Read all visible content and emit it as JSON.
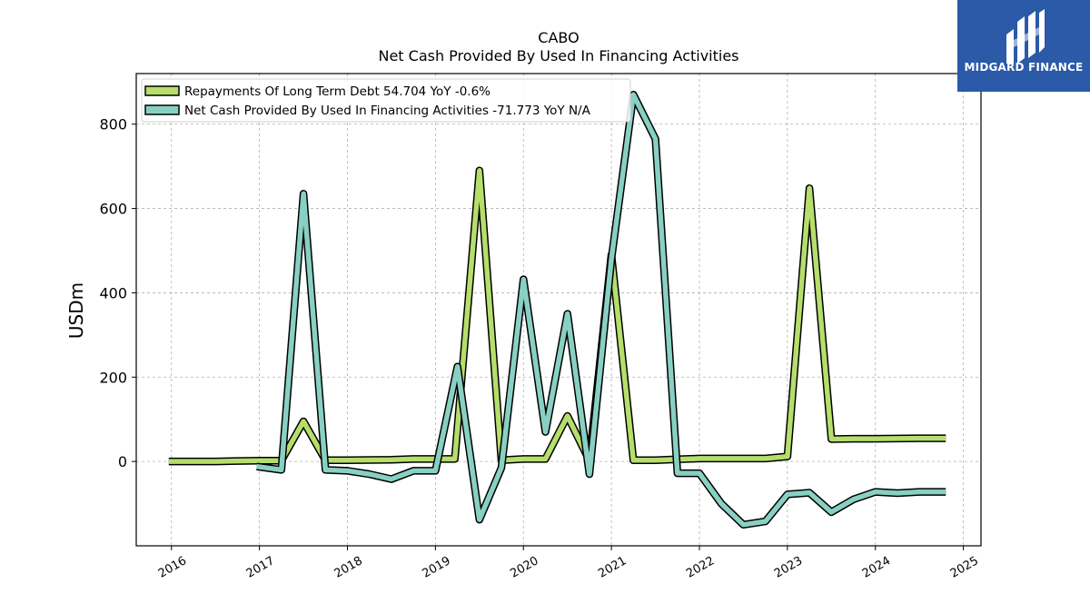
{
  "brand": {
    "name": "MIDGARD FINANCE",
    "icon": "midgard-logo-icon",
    "bg_color": "#2a5aa8"
  },
  "chart_data": {
    "type": "line",
    "title": "CABO",
    "subtitle": "Net Cash Provided By Used In Financing Activities",
    "xlabel": "",
    "ylabel": "USDm",
    "xlim": [
      2015.6,
      2025.2
    ],
    "ylim": [
      -200,
      920
    ],
    "x_ticks": [
      2016,
      2017,
      2018,
      2019,
      2020,
      2021,
      2022,
      2023,
      2024,
      2025
    ],
    "y_ticks": [
      0,
      200,
      400,
      600,
      800
    ],
    "grid": true,
    "legend_position": "top-left",
    "series": [
      {
        "name": "Repayments Of Long Term Debt  54.704 YoY -0.6%",
        "color": "#b5de6b",
        "points": [
          [
            2015.97,
            0
          ],
          [
            2016.5,
            0
          ],
          [
            2017.0,
            2
          ],
          [
            2017.25,
            2
          ],
          [
            2017.5,
            95
          ],
          [
            2017.75,
            3
          ],
          [
            2018.0,
            3
          ],
          [
            2018.5,
            4
          ],
          [
            2018.75,
            6
          ],
          [
            2019.0,
            6
          ],
          [
            2019.22,
            6
          ],
          [
            2019.5,
            690
          ],
          [
            2019.75,
            3
          ],
          [
            2020.0,
            6
          ],
          [
            2020.25,
            6
          ],
          [
            2020.5,
            108
          ],
          [
            2020.75,
            2
          ],
          [
            2021.0,
            490
          ],
          [
            2021.25,
            3
          ],
          [
            2021.5,
            3
          ],
          [
            2021.75,
            5
          ],
          [
            2022.0,
            7
          ],
          [
            2022.25,
            7
          ],
          [
            2022.5,
            7
          ],
          [
            2022.75,
            7
          ],
          [
            2023.0,
            12
          ],
          [
            2023.25,
            648
          ],
          [
            2023.5,
            53
          ],
          [
            2023.75,
            54
          ],
          [
            2024.0,
            54
          ],
          [
            2024.5,
            55
          ],
          [
            2024.8,
            55
          ]
        ]
      },
      {
        "name": "Net Cash Provided By Used In Financing Activities  -71.773 YoY N/A",
        "color": "#88d0c3",
        "points": [
          [
            2016.97,
            -12
          ],
          [
            2017.25,
            -20
          ],
          [
            2017.5,
            635
          ],
          [
            2017.75,
            -20
          ],
          [
            2018.0,
            -22
          ],
          [
            2018.25,
            -30
          ],
          [
            2018.5,
            -42
          ],
          [
            2018.75,
            -22
          ],
          [
            2019.0,
            -22
          ],
          [
            2019.25,
            225
          ],
          [
            2019.5,
            -138
          ],
          [
            2019.75,
            -15
          ],
          [
            2020.0,
            432
          ],
          [
            2020.25,
            70
          ],
          [
            2020.5,
            350
          ],
          [
            2020.75,
            -30
          ],
          [
            2021.0,
            480
          ],
          [
            2021.25,
            870
          ],
          [
            2021.5,
            765
          ],
          [
            2021.75,
            -28
          ],
          [
            2022.0,
            -28
          ],
          [
            2022.25,
            -100
          ],
          [
            2022.5,
            -150
          ],
          [
            2022.75,
            -142
          ],
          [
            2023.0,
            -78
          ],
          [
            2023.25,
            -74
          ],
          [
            2023.5,
            -120
          ],
          [
            2023.75,
            -90
          ],
          [
            2024.0,
            -72
          ],
          [
            2024.25,
            -75
          ],
          [
            2024.5,
            -72
          ],
          [
            2024.8,
            -72
          ]
        ]
      }
    ]
  }
}
